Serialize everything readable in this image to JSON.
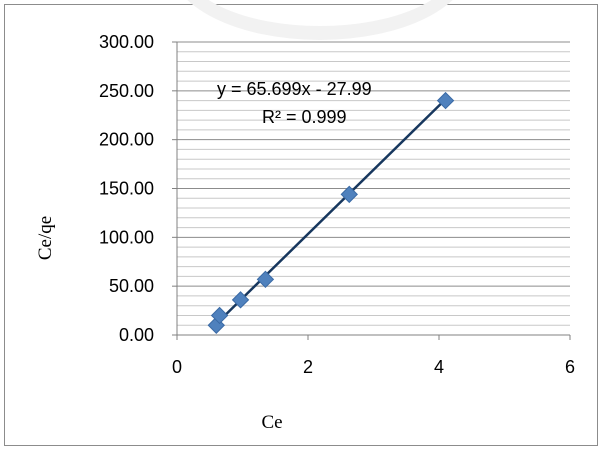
{
  "chart_data": {
    "type": "scatter",
    "xlabel": "Ce",
    "ylabel": "Ce/qe",
    "xlim": [
      0,
      6
    ],
    "ylim": [
      0,
      300
    ],
    "x_ticks": [
      "0",
      "2",
      "4",
      "6"
    ],
    "y_ticks": [
      "0.00",
      "50.00",
      "100.00",
      "150.00",
      "200.00",
      "250.00",
      "300.00"
    ],
    "grid": "horizontal",
    "marker": "diamond",
    "colors": {
      "points": "#4f81bd",
      "trendline": "#17375e"
    },
    "series": [
      {
        "x": [
          0.6,
          0.65,
          0.97,
          1.35,
          2.63,
          4.1
        ],
        "y": [
          10,
          20,
          36,
          57,
          144,
          240
        ]
      }
    ],
    "trendline": {
      "slope": 65.699,
      "intercept": -27.99,
      "equation_label": "y = 65.699x - 27.99",
      "r2_label": "R² = 0.999"
    }
  }
}
